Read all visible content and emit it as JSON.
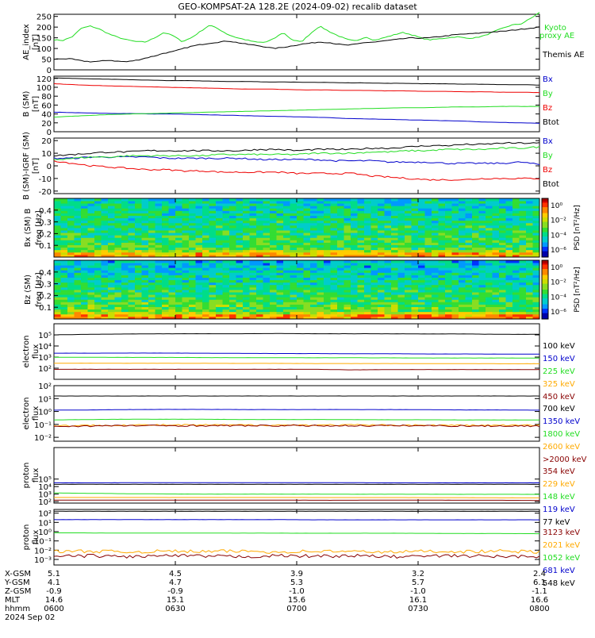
{
  "title": "GEO-KOMPSAT-2A 128.2E (2024-09-02) recalib dataset",
  "colors": {
    "black": "#000000",
    "green": "#22dd22",
    "red": "#ee0000",
    "blue": "#0000cc",
    "yellow": "#ffaa00",
    "darkred": "#880000"
  },
  "chart_data": [
    {
      "type": "line",
      "id": "ae",
      "ylabel": "AE_index [nT]",
      "ylim": [
        0,
        260
      ],
      "yticks": [
        "0",
        "50",
        "100",
        "150",
        "200",
        "250"
      ],
      "series": [
        {
          "name": "Kyoto proxy AE",
          "color": "#22dd22",
          "label_lines": [
            "Kyoto",
            "proxy AE"
          ],
          "values": [
            140,
            138,
            155,
            195,
            205,
            190,
            168,
            152,
            140,
            132,
            130,
            150,
            175,
            160,
            132,
            150,
            180,
            210,
            190,
            165,
            150,
            140,
            130,
            128,
            145,
            175,
            140,
            130,
            170,
            205,
            180,
            160,
            142,
            134,
            155,
            138,
            150,
            162,
            175,
            165,
            150,
            140,
            145,
            150,
            155,
            148,
            150,
            160,
            178,
            195,
            210,
            215,
            240,
            268
          ]
        },
        {
          "name": "Themis AE",
          "color": "#000000",
          "values": [
            50,
            52,
            50,
            42,
            38,
            40,
            45,
            40,
            38,
            45,
            55,
            65,
            78,
            85,
            98,
            110,
            118,
            125,
            130,
            135,
            128,
            120,
            115,
            108,
            100,
            105,
            112,
            120,
            125,
            130,
            128,
            120,
            115,
            120,
            128,
            130,
            135,
            140,
            145,
            150,
            148,
            150,
            155,
            160,
            165,
            168,
            170,
            175,
            178,
            180,
            185,
            190,
            195,
            200
          ]
        }
      ]
    },
    {
      "type": "line",
      "id": "bsm",
      "ylabel": "B (SM) [nT]",
      "ylim": [
        0,
        125
      ],
      "yticks": [
        "0",
        "20",
        "40",
        "60",
        "80",
        "100",
        "120"
      ],
      "series": [
        {
          "name": "Bx",
          "color": "#0000cc",
          "values": [
            44,
            43,
            42,
            41,
            41,
            40,
            40,
            39,
            38,
            37,
            36,
            35,
            34,
            33,
            32,
            30,
            29,
            28,
            27,
            26,
            25,
            24,
            22,
            21,
            20,
            19
          ]
        },
        {
          "name": "By",
          "color": "#22dd22",
          "values": [
            33,
            35,
            37,
            39,
            40,
            41,
            42,
            43,
            44,
            45,
            46,
            47,
            48,
            49,
            50,
            51,
            52,
            53,
            54,
            54,
            55,
            56,
            56,
            57,
            57,
            57
          ]
        },
        {
          "name": "Bz",
          "color": "#ee0000",
          "values": [
            108,
            106,
            104,
            103,
            102,
            101,
            100,
            99,
            98,
            97,
            96,
            96,
            95,
            94,
            94,
            93,
            93,
            92,
            92,
            91,
            91,
            90,
            90,
            89,
            89,
            88
          ]
        },
        {
          "name": "Btot",
          "color": "#000000",
          "values": [
            121,
            120,
            119,
            118,
            117,
            116,
            115,
            115,
            114,
            113,
            113,
            112,
            112,
            111,
            111,
            110,
            110,
            109,
            109,
            108,
            108,
            107,
            107,
            106,
            106,
            105
          ]
        }
      ]
    },
    {
      "type": "line",
      "id": "bigrf",
      "ylabel": "B (SM)-IGRF (SM) [nT]",
      "ylim": [
        -22,
        22
      ],
      "yticks": [
        "-20",
        "-10",
        "0",
        "10",
        "20"
      ],
      "series": [
        {
          "name": "Bx",
          "color": "#0000cc",
          "values": [
            6,
            6,
            7,
            7,
            7,
            7,
            6,
            6,
            6,
            6,
            6,
            5,
            5,
            5,
            5,
            4,
            4,
            4,
            3,
            3,
            3,
            2,
            2,
            2,
            2,
            3,
            1
          ]
        },
        {
          "name": "By",
          "color": "#22dd22",
          "values": [
            5,
            6,
            7,
            7,
            8,
            8,
            8,
            8,
            8,
            9,
            9,
            9,
            9,
            9,
            10,
            10,
            10,
            11,
            11,
            12,
            12,
            13,
            13,
            13,
            14,
            14,
            15
          ]
        },
        {
          "name": "Bz",
          "color": "#ee0000",
          "values": [
            4,
            2,
            0,
            -1,
            -2,
            -3,
            -3,
            -4,
            -4,
            -5,
            -5,
            -5,
            -5,
            -6,
            -6,
            -6,
            -6,
            -8,
            -9,
            -10,
            -11,
            -11,
            -11,
            -10,
            -10,
            -10,
            -10
          ]
        },
        {
          "name": "Btot",
          "color": "#000000",
          "values": [
            8,
            9,
            10,
            11,
            11,
            12,
            12,
            12,
            12,
            12,
            12,
            13,
            13,
            12,
            13,
            13,
            13,
            14,
            14,
            15,
            16,
            16,
            17,
            17,
            18,
            18,
            18
          ]
        }
      ]
    },
    {
      "type": "heatmap",
      "id": "bxspec",
      "ylabel": "Bx (SM) B",
      "ylabel2": "freq [Hz]",
      "ylim": [
        0,
        0.5
      ],
      "yticks": [
        "0.1",
        "0.2",
        "0.3",
        "0.4"
      ],
      "colorbar": {
        "label": "PSD [nT²/Hz]",
        "ticks": [
          "10⁰",
          "10⁻²",
          "10⁻⁴",
          "10⁻⁶"
        ]
      }
    },
    {
      "type": "heatmap",
      "id": "bzspec",
      "ylabel": "Bz (SM)",
      "ylabel2": "freq [Hz]",
      "ylim": [
        0,
        0.5
      ],
      "yticks": [
        "0.1",
        "0.2",
        "0.3",
        "0.4"
      ],
      "colorbar": {
        "label": "PSD [nT²/Hz]",
        "ticks": [
          "10⁰",
          "10⁻²",
          "10⁻⁴",
          "10⁻⁶"
        ]
      }
    },
    {
      "type": "line",
      "id": "elow",
      "ylabel": "electron flux",
      "ylog": [
        1,
        6
      ],
      "yticks": [
        {
          "e": 2,
          "label": "10²"
        },
        {
          "e": 3,
          "label": "10³"
        },
        {
          "e": 4,
          "label": "10⁴"
        },
        {
          "e": 5,
          "label": "10⁵"
        }
      ],
      "series": [
        {
          "name": "100 keV",
          "color": "#000000",
          "values": [
            5.0,
            5.05,
            5.08,
            5.1,
            5.1,
            5.1,
            5.12,
            5.1,
            5.1,
            5.1,
            5.08,
            5.08,
            5.05,
            5.05
          ]
        },
        {
          "name": "150 keV",
          "color": "#0000cc",
          "values": [
            3.35,
            3.35,
            3.36,
            3.36,
            3.35,
            3.33,
            3.32,
            3.32,
            3.3,
            3.3,
            3.28,
            3.28,
            3.27,
            3.27
          ]
        },
        {
          "name": "225 keV",
          "color": "#22dd22",
          "values": [
            2.98,
            2.98,
            2.97,
            2.97,
            2.96,
            2.95,
            2.95,
            2.94,
            2.94,
            2.93,
            2.92,
            2.92,
            2.92,
            2.91
          ]
        },
        {
          "name": "325 keV",
          "color": "#ffaa00",
          "values": [
            2.45,
            2.45,
            2.44,
            2.44,
            2.44,
            2.43,
            2.43,
            2.42,
            2.42,
            2.42,
            2.41,
            2.41,
            2.4,
            2.4
          ]
        },
        {
          "name": "450 keV",
          "color": "#880000",
          "values": [
            1.9,
            1.9,
            1.9,
            1.9,
            1.9,
            1.9,
            1.9,
            1.9,
            1.85,
            1.88,
            1.88,
            1.88,
            1.88,
            1.88
          ]
        }
      ]
    },
    {
      "type": "line",
      "id": "ehigh",
      "ylabel": "electron flux",
      "ylog": [
        -2.3,
        2
      ],
      "yticks": [
        {
          "e": -2,
          "label": "10⁻²"
        },
        {
          "e": -1,
          "label": "10⁻¹"
        },
        {
          "e": 0,
          "label": "10⁰"
        },
        {
          "e": 1,
          "label": "10¹"
        },
        {
          "e": 2,
          "label": "10²"
        }
      ],
      "series": [
        {
          "name": "700 keV",
          "color": "#000000",
          "values": [
            1.2,
            1.2,
            1.2,
            1.2,
            1.2,
            1.2,
            1.2,
            1.2,
            1.2,
            1.2,
            1.2,
            1.2,
            1.2,
            1.2
          ]
        },
        {
          "name": "1350 keV",
          "color": "#0000cc",
          "values": [
            0.1,
            0.12,
            0.15,
            0.16,
            0.16,
            0.15,
            0.15,
            0.15,
            0.15,
            0.15,
            0.14,
            0.12,
            0.12,
            0.1
          ]
        },
        {
          "name": "1800 keV",
          "color": "#22dd22",
          "values": [
            -0.65,
            -0.62,
            -0.6,
            -0.6,
            -0.6,
            -0.62,
            -0.62,
            -0.62,
            -0.63,
            -0.64,
            -0.64,
            -0.65,
            -0.65,
            -0.66
          ]
        },
        {
          "name": "2600 keV",
          "color": "#ffaa00",
          "values": [
            -1.1,
            -1.08,
            -1.05,
            -1.05,
            -1.05,
            -1.05,
            -1.05,
            -1.05,
            -1.05,
            -1.06,
            -1.06,
            -1.07,
            -1.07,
            -1.07
          ]
        },
        {
          "name": ">2000 keV",
          "color": "#880000",
          "values": [
            -1.15,
            -1.12,
            -1.1,
            -1.1,
            -1.1,
            -1.1,
            -1.1,
            -1.1,
            -1.1,
            -1.1,
            -1.1,
            -1.12,
            -1.12,
            -1.12
          ]
        }
      ]
    },
    {
      "type": "line",
      "id": "plow",
      "ylabel": "proton flux",
      "ylog": [
        1.8,
        9.2
      ],
      "yticks": [
        {
          "e": 2,
          "label": "10²"
        },
        {
          "e": 3,
          "label": "10³"
        },
        {
          "e": 4,
          "label": "10⁴"
        },
        {
          "e": 5,
          "label": "10⁵"
        }
      ],
      "series": [
        {
          "name": "354 keV",
          "color": "#880000",
          "values": [
            2.2,
            2.2,
            2.2,
            2.2,
            2.2,
            2.2,
            2.2,
            2.18,
            2.18,
            2.2,
            2.2,
            2.18,
            2.18,
            2.15
          ]
        },
        {
          "name": "229 keV",
          "color": "#ffaa00",
          "values": [
            2.55,
            2.55,
            2.55,
            2.55,
            2.55,
            2.55,
            2.55,
            2.54,
            2.54,
            2.54,
            2.53,
            2.53,
            2.5,
            2.5
          ]
        },
        {
          "name": "148 keV",
          "color": "#22dd22",
          "values": [
            3.15,
            3.1,
            3.05,
            3.02,
            3.0,
            3.0,
            3.0,
            3.0,
            2.98,
            2.98,
            2.98,
            2.97,
            2.97,
            2.97
          ]
        },
        {
          "name": "119 keV",
          "color": "#0000cc",
          "values": [
            4.5,
            4.5,
            4.52,
            4.52,
            4.52,
            4.52,
            4.52,
            4.52,
            4.52,
            4.5,
            4.5,
            4.5,
            4.5,
            4.5
          ]
        },
        {
          "name": "77 keV",
          "color": "#000000",
          "values": [
            4.3,
            4.3,
            4.3,
            4.3,
            4.3,
            4.3,
            4.3,
            4.3,
            4.3,
            4.3,
            4.3,
            4.3,
            4.3,
            4.3
          ]
        }
      ]
    },
    {
      "type": "line",
      "id": "phigh",
      "ylabel": "proton flux",
      "ylog": [
        -3.6,
        2.4
      ],
      "yticks": [
        {
          "e": -3,
          "label": "10⁻³"
        },
        {
          "e": -2,
          "label": "10⁻²"
        },
        {
          "e": -1,
          "label": "10⁻¹"
        },
        {
          "e": 0,
          "label": "10⁰"
        },
        {
          "e": 1,
          "label": "10¹"
        },
        {
          "e": 2,
          "label": "10²"
        }
      ],
      "series": [
        {
          "name": "3123 keV",
          "color": "#880000",
          "values": [
            -2.7,
            -2.6,
            -2.7,
            -2.6,
            -2.65,
            -2.7,
            -2.6,
            -2.65,
            -2.6,
            -2.7,
            -2.65,
            -2.6,
            -2.7,
            -2.65
          ]
        },
        {
          "name": "2021 keV",
          "color": "#ffaa00",
          "values": [
            -2.15,
            -2.1,
            -2.2,
            -2.1,
            -2.15,
            -2.1,
            -2.2,
            -2.1,
            -2.15,
            -2.2,
            -2.1,
            -2.15,
            -2.1,
            -2.2
          ]
        },
        {
          "name": "1052 keV",
          "color": "#22dd22",
          "values": [
            -0.12,
            -0.14,
            -0.15,
            -0.15,
            -0.15,
            -0.16,
            -0.16,
            -0.17,
            -0.17,
            -0.17,
            -0.18,
            -0.2,
            -0.2,
            -0.22
          ]
        },
        {
          "name": "681 keV",
          "color": "#0000cc",
          "values": [
            1.3,
            1.3,
            1.3,
            1.3,
            1.3,
            1.3,
            1.3,
            1.28,
            1.28,
            1.28,
            1.28,
            1.28,
            1.28,
            1.28
          ]
        },
        {
          "name": "548 keV",
          "color": "#000000",
          "values": [
            2.2,
            2.2,
            2.2,
            2.2,
            2.2,
            2.2,
            2.2,
            2.2,
            2.2,
            2.2,
            2.2,
            2.2,
            2.2,
            2.2
          ]
        }
      ]
    }
  ],
  "ephemeris": {
    "rows": [
      {
        "label": "X-GSM",
        "values": [
          "5.1",
          "4.5",
          "3.9",
          "3.2",
          "2.4"
        ]
      },
      {
        "label": "Y-GSM",
        "values": [
          "4.1",
          "4.7",
          "5.3",
          "5.7",
          "6.1"
        ]
      },
      {
        "label": "Z-GSM",
        "values": [
          "-0.9",
          "-0.9",
          "-1.0",
          "-1.0",
          "-1.1"
        ]
      },
      {
        "label": "MLT",
        "values": [
          "14.6",
          "15.1",
          "15.6",
          "16.1",
          "16.6"
        ]
      },
      {
        "label": "hhmm",
        "values": [
          "0600",
          "0630",
          "0700",
          "0730",
          "0800"
        ]
      }
    ],
    "date": "2024 Sep 02"
  }
}
